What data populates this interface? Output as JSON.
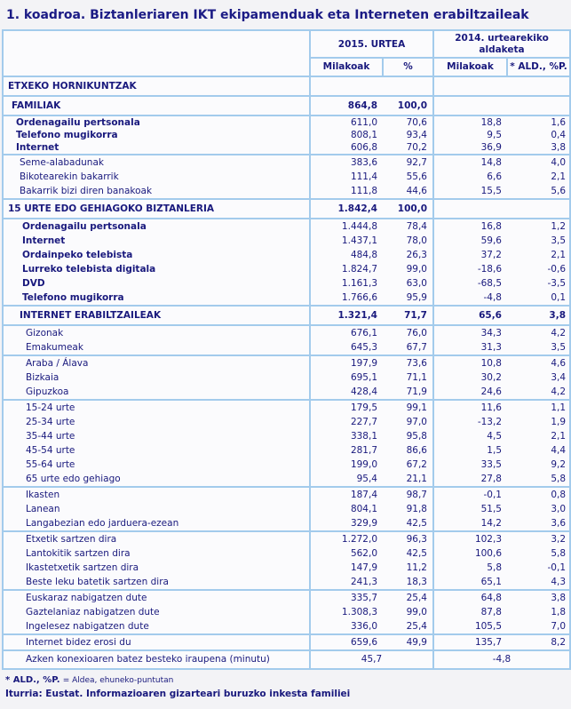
{
  "title": "1. koadroa. Biztanleriaren IKT ekipamenduak eta Interneten erabiltzaileak",
  "colors": {
    "border_blue": "#a3cbec",
    "text_navy": "#19197d",
    "page_bg": "#f3f3f6",
    "cell_bg": "#fbfbfd"
  },
  "table": {
    "header": {
      "group_2015": "2015. URTEA",
      "group_2014": "2014. urtearekiko aldaketa",
      "subcolumns": [
        "Milakoak",
        "%",
        "Milakoak",
        "* ALD., %P."
      ]
    },
    "groups": [
      {
        "rows": [
          {
            "label": "ETXEKO HORNIKUNTZAK",
            "style": "section",
            "indent": 0,
            "values": [
              "",
              "",
              "",
              ""
            ]
          }
        ]
      },
      {
        "rows": [
          {
            "label": "FAMILIAK",
            "style": "section",
            "indent": 1,
            "bold_values": true,
            "values": [
              "864,8",
              "100,0",
              "",
              ""
            ]
          }
        ]
      },
      {
        "rows": [
          {
            "label": "Ordenagailu pertsonala",
            "style": "tight",
            "indent": 2,
            "values": [
              "611,0",
              "70,6",
              "18,8",
              "1,6"
            ]
          },
          {
            "label": "Telefono mugikorra",
            "style": "tight",
            "indent": 2,
            "values": [
              "808,1",
              "93,4",
              "9,5",
              "0,4"
            ]
          },
          {
            "label": "Internet",
            "style": "tight",
            "indent": 2,
            "values": [
              "606,8",
              "70,2",
              "36,9",
              "3,8"
            ]
          }
        ]
      },
      {
        "rows": [
          {
            "label": "Seme-alabadunak",
            "style": "plain",
            "indent": 3,
            "values": [
              "383,6",
              "92,7",
              "14,8",
              "4,0"
            ]
          },
          {
            "label": "Bikotearekin bakarrik",
            "style": "plain",
            "indent": 3,
            "values": [
              "111,4",
              "55,6",
              "6,6",
              "2,1"
            ]
          },
          {
            "label": "Bakarrik bizi diren banakoak",
            "style": "plain",
            "indent": 3,
            "values": [
              "111,8",
              "44,6",
              "15,5",
              "5,6"
            ]
          }
        ]
      },
      {
        "rows": [
          {
            "label": "15 URTE EDO GEHIAGOKO BIZTANLERIA",
            "style": "section",
            "indent": 0,
            "bold_values": true,
            "values": [
              "1.842,4",
              "100,0",
              "",
              ""
            ]
          }
        ]
      },
      {
        "rows": [
          {
            "label": "Ordenagailu pertsonala",
            "style": "boldlabel",
            "indent": 4,
            "values": [
              "1.444,8",
              "78,4",
              "16,8",
              "1,2"
            ]
          },
          {
            "label": "Internet",
            "style": "boldlabel",
            "indent": 4,
            "values": [
              "1.437,1",
              "78,0",
              "59,6",
              "3,5"
            ]
          },
          {
            "label": "Ordainpeko telebista",
            "style": "boldlabel",
            "indent": 4,
            "values": [
              "484,8",
              "26,3",
              "37,2",
              "2,1"
            ]
          },
          {
            "label": "Lurreko telebista digitala",
            "style": "boldlabel",
            "indent": 4,
            "values": [
              "1.824,7",
              "99,0",
              "-18,6",
              "-0,6"
            ]
          },
          {
            "label": "DVD",
            "style": "boldlabel",
            "indent": 4,
            "values": [
              "1.161,3",
              "63,0",
              "-68,5",
              "-3,5"
            ]
          },
          {
            "label": "Telefono mugikorra",
            "style": "boldlabel",
            "indent": 4,
            "values": [
              "1.766,6",
              "95,9",
              "-4,8",
              "0,1"
            ]
          }
        ]
      },
      {
        "rows": [
          {
            "label": "INTERNET ERABILTZAILEAK",
            "style": "section",
            "indent": 3,
            "bold_values": true,
            "values": [
              "1.321,4",
              "71,7",
              "65,6",
              "3,8"
            ]
          }
        ]
      },
      {
        "rows": [
          {
            "label": "Gizonak",
            "style": "plain",
            "indent": 5,
            "values": [
              "676,1",
              "76,0",
              "34,3",
              "4,2"
            ]
          },
          {
            "label": "Emakumeak",
            "style": "plain",
            "indent": 5,
            "values": [
              "645,3",
              "67,7",
              "31,3",
              "3,5"
            ]
          }
        ]
      },
      {
        "rows": [
          {
            "label": "Araba / Álava",
            "style": "plain",
            "indent": 5,
            "values": [
              "197,9",
              "73,6",
              "10,8",
              "4,6"
            ]
          },
          {
            "label": "Bizkaia",
            "style": "plain",
            "indent": 5,
            "values": [
              "695,1",
              "71,1",
              "30,2",
              "3,4"
            ]
          },
          {
            "label": "Gipuzkoa",
            "style": "plain",
            "indent": 5,
            "values": [
              "428,4",
              "71,9",
              "24,6",
              "4,2"
            ]
          }
        ]
      },
      {
        "rows": [
          {
            "label": "15-24 urte",
            "style": "plain",
            "indent": 5,
            "values": [
              "179,5",
              "99,1",
              "11,6",
              "1,1"
            ]
          },
          {
            "label": "25-34 urte",
            "style": "plain",
            "indent": 5,
            "values": [
              "227,7",
              "97,0",
              "-13,2",
              "1,9"
            ]
          },
          {
            "label": "35-44 urte",
            "style": "plain",
            "indent": 5,
            "values": [
              "338,1",
              "95,8",
              "4,5",
              "2,1"
            ]
          },
          {
            "label": "45-54 urte",
            "style": "plain",
            "indent": 5,
            "values": [
              "281,7",
              "86,6",
              "1,5",
              "4,4"
            ]
          },
          {
            "label": "55-64 urte",
            "style": "plain",
            "indent": 5,
            "values": [
              "199,0",
              "67,2",
              "33,5",
              "9,2"
            ]
          },
          {
            "label": "65 urte edo gehiago",
            "style": "plain",
            "indent": 5,
            "values": [
              "95,4",
              "21,1",
              "27,8",
              "5,8"
            ]
          }
        ]
      },
      {
        "rows": [
          {
            "label": "Ikasten",
            "style": "plain",
            "indent": 5,
            "values": [
              "187,4",
              "98,7",
              "-0,1",
              "0,8"
            ]
          },
          {
            "label": "Lanean",
            "style": "plain",
            "indent": 5,
            "values": [
              "804,1",
              "91,8",
              "51,5",
              "3,0"
            ]
          },
          {
            "label": "Langabezian edo jarduera-ezean",
            "style": "plain",
            "indent": 5,
            "values": [
              "329,9",
              "42,5",
              "14,2",
              "3,6"
            ]
          }
        ]
      },
      {
        "rows": [
          {
            "label": "Etxetik sartzen dira",
            "style": "plain",
            "indent": 5,
            "values": [
              "1.272,0",
              "96,3",
              "102,3",
              "3,2"
            ]
          },
          {
            "label": "Lantokitik sartzen dira",
            "style": "plain",
            "indent": 5,
            "values": [
              "562,0",
              "42,5",
              "100,6",
              "5,8"
            ]
          },
          {
            "label": "Ikastetxetik sartzen dira",
            "style": "plain",
            "indent": 5,
            "values": [
              "147,9",
              "11,2",
              "5,8",
              "-0,1"
            ]
          },
          {
            "label": "Beste leku batetik sartzen dira",
            "style": "plain",
            "indent": 5,
            "values": [
              "241,3",
              "18,3",
              "65,1",
              "4,3"
            ]
          }
        ]
      },
      {
        "rows": [
          {
            "label": "Euskaraz nabigatzen dute",
            "style": "plain",
            "indent": 5,
            "values": [
              "335,7",
              "25,4",
              "64,8",
              "3,8"
            ]
          },
          {
            "label": "Gaztelaniaz nabigatzen dute",
            "style": "plain",
            "indent": 5,
            "values": [
              "1.308,3",
              "99,0",
              "87,8",
              "1,8"
            ]
          },
          {
            "label": "Ingelesez nabigatzen dute",
            "style": "plain",
            "indent": 5,
            "values": [
              "336,0",
              "25,4",
              "105,5",
              "7,0"
            ]
          }
        ]
      },
      {
        "rows": [
          {
            "label": "Internet bidez erosi du",
            "style": "plain",
            "indent": 5,
            "values": [
              "659,6",
              "49,9",
              "135,7",
              "8,2"
            ]
          }
        ]
      },
      {
        "rows": [
          {
            "label": "Azken konexioaren batez besteko iraupena (minutu)",
            "style": "merged",
            "indent": 5,
            "merged": true,
            "values": [
              "45,7",
              "-4,8"
            ]
          }
        ]
      }
    ]
  },
  "footnotes": {
    "note_term": "* ALD., %P.",
    "note_def": "= Aldea, ehuneko-puntutan",
    "source": "Iturria: Eustat. Informazioaren gizarteari buruzko inkesta familiei"
  }
}
